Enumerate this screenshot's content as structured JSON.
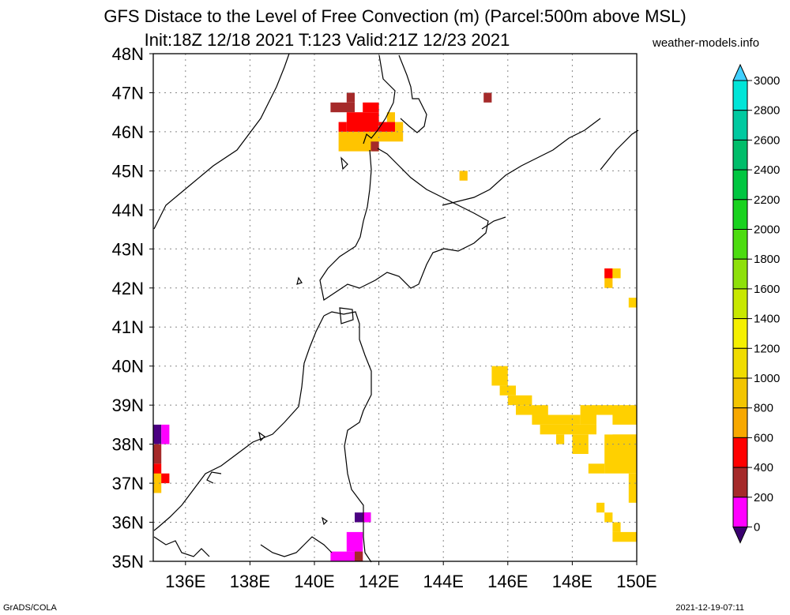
{
  "title_line1": "GFS Distace to the Level of Free Convection (m) (Parcel:500m above MSL)",
  "title_line2": "Init:18Z 12/18 2021 T:123 Valid:21Z 12/23 2021",
  "site": "weather-models.info",
  "footer_left": "GrADS/COLA",
  "footer_right": "2021-12-19-07:11",
  "map": {
    "lat_labels": [
      "48N",
      "47N",
      "46N",
      "45N",
      "44N",
      "43N",
      "42N",
      "41N",
      "40N",
      "39N",
      "38N",
      "37N",
      "36N",
      "35N"
    ],
    "lon_labels": [
      "136E",
      "138E",
      "140E",
      "142E",
      "144E",
      "146E",
      "148E",
      "150E"
    ]
  },
  "colorbar": {
    "labels": [
      "3000",
      "2800",
      "2600",
      "2400",
      "2200",
      "2000",
      "1800",
      "1600",
      "1400",
      "1200",
      "1000",
      "800",
      "600",
      "400",
      "200",
      "0"
    ],
    "colors": [
      "#00e5d8",
      "#00c9a0",
      "#00bd6a",
      "#00c640",
      "#19d21e",
      "#4cdc10",
      "#8ee00a",
      "#c8e800",
      "#f5f000",
      "#f0dc00",
      "#f3c500",
      "#f7a800",
      "#ff0000",
      "#a52a2a",
      "#ff00ff",
      "#4b0082"
    ],
    "top_arrow_color": "#40d0ff",
    "bottom_arrow_color": "#3a0070"
  },
  "field_colors": {
    "purple": "#4b0082",
    "magenta": "#ff00ff",
    "brown": "#a52a2a",
    "red": "#ff0000",
    "orange": "#ffaa00",
    "yellow_orange": "#ffc400",
    "gold": "#ffd000"
  }
}
